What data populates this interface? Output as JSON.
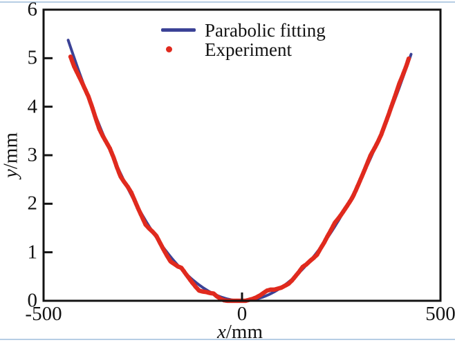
{
  "figure": {
    "border_color": "#b6cde4",
    "axis_color": "#131313",
    "background": "#ffffff"
  },
  "chart_data": {
    "type": "line+scatter",
    "title": "",
    "xlabel": {
      "var": "x",
      "unit": "/mm"
    },
    "ylabel": {
      "var": "y",
      "unit": "/mm"
    },
    "xlim": [
      -500,
      500
    ],
    "ylim": [
      0,
      6
    ],
    "xticks": [
      -500,
      0,
      500
    ],
    "yticks": [
      0,
      1,
      2,
      3,
      4,
      5,
      6
    ],
    "x_tick_marks": [
      0
    ],
    "y_tick_marks": [
      1,
      2,
      3,
      4,
      5
    ],
    "grid": false,
    "legend": {
      "position": "upper center",
      "entries": [
        {
          "label": "Parabolic fitting",
          "marker": "line",
          "color": "#3b4296"
        },
        {
          "label": "Experiment",
          "marker": "dot",
          "color": "#e02a1e"
        }
      ]
    },
    "series": [
      {
        "name": "Parabolic fitting",
        "kind": "line",
        "color": "#3b4296",
        "model": "y = a*x^2",
        "a": 2.8e-05,
        "x_domain": [
          -438,
          428
        ]
      },
      {
        "name": "Experiment",
        "kind": "scatter",
        "color": "#e02a1e",
        "points": [
          [
            -432,
            5.03
          ],
          [
            -423,
            4.83
          ],
          [
            -414,
            4.68
          ],
          [
            -405,
            4.53
          ],
          [
            -396,
            4.37
          ],
          [
            -387,
            4.21
          ],
          [
            -378,
            4.0
          ],
          [
            -369,
            3.77
          ],
          [
            -360,
            3.55
          ],
          [
            -351,
            3.4
          ],
          [
            -342,
            3.27
          ],
          [
            -333,
            3.14
          ],
          [
            -324,
            2.96
          ],
          [
            -315,
            2.75
          ],
          [
            -306,
            2.56
          ],
          [
            -297,
            2.45
          ],
          [
            -288,
            2.35
          ],
          [
            -279,
            2.23
          ],
          [
            -270,
            2.06
          ],
          [
            -261,
            1.89
          ],
          [
            -252,
            1.73
          ],
          [
            -243,
            1.57
          ],
          [
            -234,
            1.49
          ],
          [
            -225,
            1.42
          ],
          [
            -216,
            1.34
          ],
          [
            -207,
            1.2
          ],
          [
            -198,
            1.06
          ],
          [
            -189,
            0.93
          ],
          [
            -180,
            0.81
          ],
          [
            -171,
            0.76
          ],
          [
            -162,
            0.71
          ],
          [
            -153,
            0.68
          ],
          [
            -144,
            0.58
          ],
          [
            -135,
            0.48
          ],
          [
            -126,
            0.38
          ],
          [
            -117,
            0.29
          ],
          [
            -108,
            0.21
          ],
          [
            -99,
            0.19
          ],
          [
            -90,
            0.18
          ],
          [
            -81,
            0.16
          ],
          [
            -72,
            0.15
          ],
          [
            -63,
            0.09
          ],
          [
            -54,
            0.04
          ],
          [
            -45,
            0.01
          ],
          [
            -36,
            0.0
          ],
          [
            -27,
            0.0
          ],
          [
            -18,
            0.0
          ],
          [
            -9,
            0.0
          ],
          [
            0,
            0.0
          ],
          [
            9,
            0.0
          ],
          [
            18,
            0.02
          ],
          [
            27,
            0.04
          ],
          [
            36,
            0.07
          ],
          [
            45,
            0.11
          ],
          [
            54,
            0.16
          ],
          [
            63,
            0.21
          ],
          [
            72,
            0.23
          ],
          [
            81,
            0.23
          ],
          [
            90,
            0.25
          ],
          [
            99,
            0.27
          ],
          [
            108,
            0.31
          ],
          [
            117,
            0.35
          ],
          [
            126,
            0.42
          ],
          [
            135,
            0.51
          ],
          [
            144,
            0.6
          ],
          [
            153,
            0.7
          ],
          [
            162,
            0.75
          ],
          [
            171,
            0.82
          ],
          [
            180,
            0.88
          ],
          [
            189,
            0.95
          ],
          [
            198,
            1.08
          ],
          [
            207,
            1.2
          ],
          [
            216,
            1.34
          ],
          [
            225,
            1.47
          ],
          [
            234,
            1.61
          ],
          [
            243,
            1.7
          ],
          [
            252,
            1.8
          ],
          [
            261,
            1.91
          ],
          [
            270,
            2.02
          ],
          [
            279,
            2.14
          ],
          [
            288,
            2.3
          ],
          [
            297,
            2.47
          ],
          [
            306,
            2.64
          ],
          [
            315,
            2.82
          ],
          [
            324,
            3.0
          ],
          [
            333,
            3.13
          ],
          [
            342,
            3.27
          ],
          [
            351,
            3.43
          ],
          [
            360,
            3.63
          ],
          [
            369,
            3.83
          ],
          [
            378,
            4.04
          ],
          [
            387,
            4.25
          ],
          [
            396,
            4.47
          ],
          [
            405,
            4.65
          ],
          [
            414,
            4.84
          ],
          [
            420,
            4.99
          ]
        ]
      }
    ]
  }
}
